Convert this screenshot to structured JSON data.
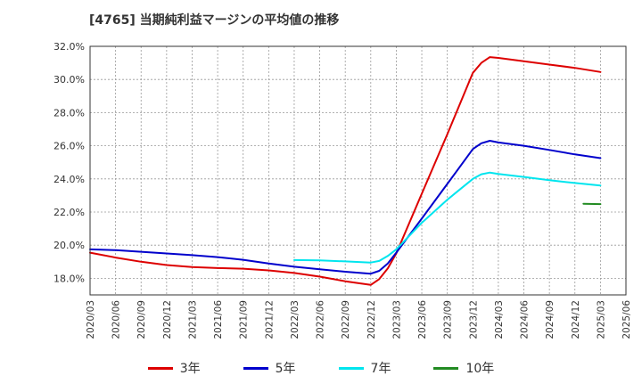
{
  "chart_data": {
    "type": "line",
    "title": "[4765]  当期純利益マージンの平均値の推移",
    "xlabel": "",
    "ylabel": "",
    "x_ticks": [
      "2020/03",
      "2020/06",
      "2020/09",
      "2020/12",
      "2021/03",
      "2021/06",
      "2021/09",
      "2021/12",
      "2022/03",
      "2022/06",
      "2022/09",
      "2022/12",
      "2023/03",
      "2023/06",
      "2023/09",
      "2023/12",
      "2024/03",
      "2024/06",
      "2024/09",
      "2024/12",
      "2025/03",
      "2025/06"
    ],
    "y_ticks": [
      "18.0%",
      "20.0%",
      "22.0%",
      "24.0%",
      "26.0%",
      "28.0%",
      "30.0%",
      "32.0%"
    ],
    "ylim": [
      17.0,
      32.0
    ],
    "grid": true,
    "legend_position": "bottom",
    "series": [
      {
        "name": "3年",
        "color": "#dd0000",
        "points": [
          [
            "2020/03",
            19.55
          ],
          [
            "2020/06",
            19.25
          ],
          [
            "2020/09",
            19.0
          ],
          [
            "2020/12",
            18.8
          ],
          [
            "2021/03",
            18.68
          ],
          [
            "2021/06",
            18.62
          ],
          [
            "2021/09",
            18.58
          ],
          [
            "2021/12",
            18.48
          ],
          [
            "2022/03",
            18.32
          ],
          [
            "2022/06",
            18.1
          ],
          [
            "2022/09",
            17.82
          ],
          [
            "2022/12",
            17.6
          ],
          [
            "2023/01",
            17.95
          ],
          [
            "2023/02",
            18.6
          ],
          [
            "2023/03",
            19.5
          ],
          [
            "2023/06",
            23.1
          ],
          [
            "2023/09",
            26.7
          ],
          [
            "2023/12",
            30.4
          ],
          [
            "2024/01",
            31.0
          ],
          [
            "2024/02",
            31.35
          ],
          [
            "2024/03",
            31.3
          ],
          [
            "2024/06",
            31.1
          ],
          [
            "2024/09",
            30.9
          ],
          [
            "2024/12",
            30.7
          ],
          [
            "2025/03",
            30.45
          ]
        ]
      },
      {
        "name": "5年",
        "color": "#0000cc",
        "points": [
          [
            "2020/03",
            19.75
          ],
          [
            "2020/06",
            19.7
          ],
          [
            "2020/09",
            19.6
          ],
          [
            "2020/12",
            19.5
          ],
          [
            "2021/03",
            19.4
          ],
          [
            "2021/06",
            19.28
          ],
          [
            "2021/09",
            19.12
          ],
          [
            "2021/12",
            18.9
          ],
          [
            "2022/03",
            18.7
          ],
          [
            "2022/06",
            18.55
          ],
          [
            "2022/09",
            18.4
          ],
          [
            "2022/12",
            18.28
          ],
          [
            "2023/01",
            18.45
          ],
          [
            "2023/02",
            18.9
          ],
          [
            "2023/03",
            19.55
          ],
          [
            "2023/06",
            21.6
          ],
          [
            "2023/09",
            23.7
          ],
          [
            "2023/12",
            25.8
          ],
          [
            "2024/01",
            26.15
          ],
          [
            "2024/02",
            26.3
          ],
          [
            "2024/03",
            26.2
          ],
          [
            "2024/06",
            26.0
          ],
          [
            "2024/09",
            25.75
          ],
          [
            "2024/12",
            25.48
          ],
          [
            "2025/03",
            25.25
          ]
        ]
      },
      {
        "name": "7年",
        "color": "#00e5ee",
        "points": [
          [
            "2022/03",
            19.1
          ],
          [
            "2022/06",
            19.08
          ],
          [
            "2022/09",
            19.02
          ],
          [
            "2022/12",
            18.95
          ],
          [
            "2023/01",
            19.05
          ],
          [
            "2023/02",
            19.35
          ],
          [
            "2023/03",
            19.75
          ],
          [
            "2023/06",
            21.35
          ],
          [
            "2023/09",
            22.75
          ],
          [
            "2023/12",
            24.0
          ],
          [
            "2024/01",
            24.28
          ],
          [
            "2024/02",
            24.38
          ],
          [
            "2024/03",
            24.3
          ],
          [
            "2024/06",
            24.12
          ],
          [
            "2024/09",
            23.92
          ],
          [
            "2024/12",
            23.75
          ],
          [
            "2025/03",
            23.6
          ]
        ]
      },
      {
        "name": "10年",
        "color": "#228b22",
        "points": [
          [
            "2025/01",
            22.5
          ],
          [
            "2025/03",
            22.48
          ]
        ]
      }
    ]
  }
}
